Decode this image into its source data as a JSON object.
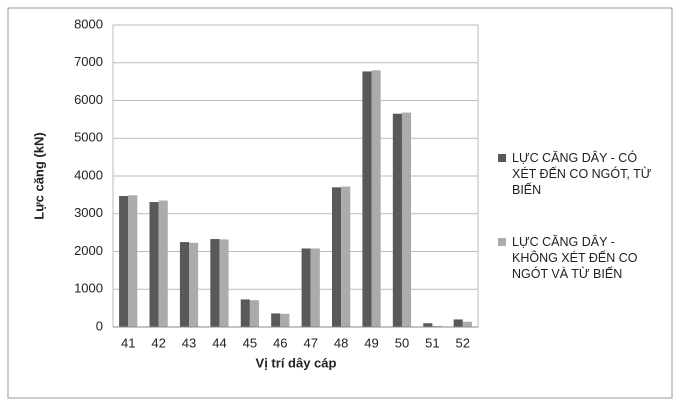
{
  "chart_data": {
    "type": "bar",
    "y_label": "Lực căng (kN)",
    "x_label": "Vị trí dây cáp",
    "categories": [
      "41",
      "42",
      "43",
      "44",
      "45",
      "46",
      "47",
      "48",
      "49",
      "50",
      "51",
      "52"
    ],
    "series": [
      {
        "name": "LỰC CĂNG DÂY - CÓ XÉT ĐẾN CO NGÓT, TỪ BIẾN",
        "color": "#595959",
        "values": [
          3470,
          3310,
          2250,
          2330,
          730,
          360,
          2080,
          3700,
          6770,
          5650,
          100,
          200
        ]
      },
      {
        "name": "LỰC CĂNG DÂY - KHÔNG XÉT ĐẾN CO NGÓT VÀ TỪ BIẾN",
        "color": "#ababab",
        "values": [
          3490,
          3350,
          2230,
          2320,
          710,
          350,
          2080,
          3720,
          6800,
          5680,
          30,
          140
        ]
      }
    ],
    "ylim": [
      0,
      8000
    ],
    "yticks": [
      0,
      1000,
      2000,
      3000,
      4000,
      5000,
      6000,
      7000,
      8000
    ],
    "grid": true,
    "legend": "right"
  }
}
